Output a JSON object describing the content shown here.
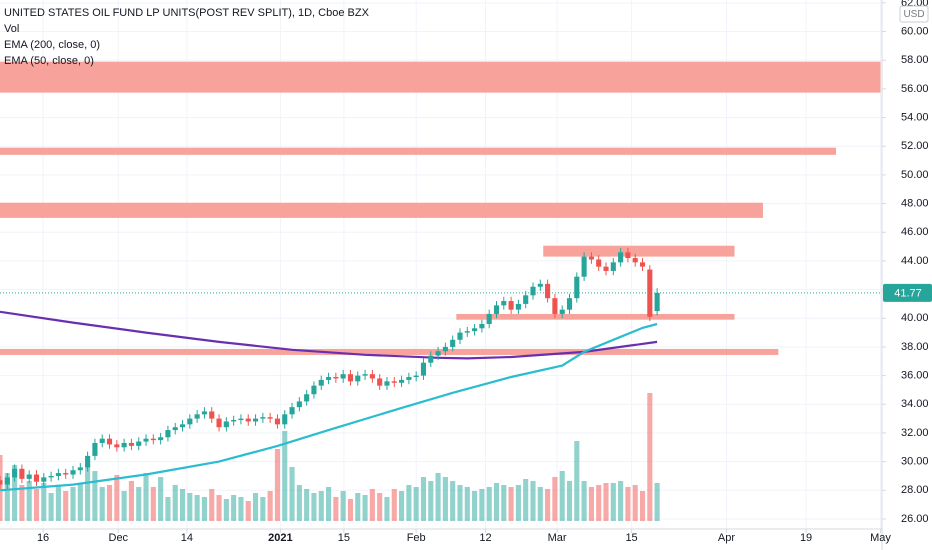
{
  "chart_data": {
    "type": "candlestick",
    "title": "UNITED STATES OIL FUND LP UNITS(POST REV SPLIT), 1D, Cboe BZX",
    "currency": "USD",
    "open": [
      28.7,
      28.4,
      28.9,
      29.5,
      28.8,
      29.1,
      28.6,
      28.9,
      29.0,
      29.2,
      29.1,
      29.4,
      29.6,
      30.4,
      31.3,
      31.6,
      31.2,
      31.0,
      31.3,
      31.1,
      31.4,
      31.6,
      31.5,
      31.7,
      32.2,
      32.4,
      32.6,
      33.0,
      33.3,
      33.5,
      33.0,
      32.4,
      32.8,
      32.9,
      33.0,
      32.8,
      33.0,
      33.1,
      33.0,
      32.6,
      33.3,
      33.8,
      34.2,
      34.7,
      35.3,
      35.7,
      35.9,
      35.8,
      36.1,
      35.6,
      36.0,
      36.1,
      35.8,
      35.3,
      35.6,
      35.5,
      35.7,
      35.9,
      36.0,
      36.9,
      37.4,
      37.7,
      38.0,
      38.5,
      39.0,
      39.1,
      39.3,
      39.6,
      40.3,
      40.9,
      41.2,
      40.6,
      41.0,
      41.6,
      42.2,
      42.4,
      41.4,
      40.3,
      40.6,
      41.4,
      42.9,
      44.3,
      44.1,
      43.6,
      43.3,
      43.9,
      44.6,
      44.2,
      43.9,
      43.4,
      40.5
    ],
    "high": [
      29.0,
      29.2,
      29.8,
      29.8,
      29.4,
      29.4,
      29.2,
      29.3,
      29.5,
      29.5,
      29.7,
      29.9,
      30.7,
      31.6,
      31.9,
      31.9,
      31.5,
      31.6,
      31.6,
      31.7,
      31.9,
      31.9,
      32.0,
      32.5,
      32.7,
      32.9,
      33.3,
      33.6,
      33.8,
      33.8,
      33.3,
      33.1,
      33.2,
      33.3,
      33.3,
      33.3,
      33.4,
      33.4,
      33.3,
      33.6,
      34.1,
      34.5,
      35.0,
      35.6,
      36.0,
      36.2,
      36.2,
      36.4,
      36.4,
      36.3,
      36.4,
      36.4,
      36.1,
      35.9,
      35.9,
      36.0,
      36.2,
      36.3,
      37.2,
      37.7,
      38.0,
      38.3,
      38.8,
      39.3,
      39.4,
      39.6,
      39.9,
      40.6,
      41.2,
      41.5,
      41.5,
      41.3,
      41.9,
      42.5,
      42.7,
      42.7,
      41.7,
      40.9,
      41.7,
      43.2,
      44.6,
      44.6,
      44.4,
      43.9,
      44.2,
      44.9,
      44.9,
      44.5,
      44.2,
      43.7,
      42.1
    ],
    "low": [
      28.1,
      28.1,
      28.6,
      28.5,
      28.5,
      28.3,
      28.3,
      28.6,
      28.7,
      28.8,
      28.8,
      29.1,
      29.3,
      30.1,
      31.0,
      30.9,
      30.7,
      30.7,
      30.8,
      30.8,
      31.1,
      31.2,
      31.2,
      31.4,
      31.9,
      32.1,
      32.3,
      32.7,
      33.0,
      32.7,
      32.1,
      32.1,
      32.5,
      32.6,
      32.5,
      32.5,
      32.7,
      32.7,
      32.3,
      32.3,
      33.0,
      33.5,
      33.9,
      34.4,
      35.0,
      35.4,
      35.5,
      35.5,
      35.3,
      35.3,
      35.7,
      35.5,
      35.0,
      35.0,
      35.2,
      35.2,
      35.4,
      35.6,
      35.7,
      36.6,
      37.1,
      37.4,
      37.7,
      38.2,
      38.7,
      38.8,
      39.0,
      39.3,
      40.0,
      40.6,
      40.3,
      40.3,
      40.7,
      41.3,
      41.9,
      41.1,
      40.0,
      40.0,
      40.3,
      41.1,
      42.6,
      43.8,
      43.3,
      43.0,
      43.0,
      43.6,
      43.9,
      43.6,
      43.3,
      39.8,
      40.2
    ],
    "close": [
      28.4,
      28.9,
      29.5,
      28.8,
      29.1,
      28.6,
      28.9,
      29.0,
      29.2,
      29.1,
      29.4,
      29.6,
      30.4,
      31.3,
      31.6,
      31.2,
      31.0,
      31.3,
      31.1,
      31.4,
      31.6,
      31.5,
      31.7,
      32.2,
      32.4,
      32.6,
      33.0,
      33.3,
      33.5,
      33.0,
      32.4,
      32.8,
      32.9,
      33.0,
      32.8,
      33.0,
      33.1,
      33.0,
      32.6,
      33.3,
      33.8,
      34.2,
      34.7,
      35.3,
      35.7,
      35.9,
      35.8,
      36.1,
      35.6,
      36.0,
      36.1,
      35.8,
      35.3,
      35.6,
      35.5,
      35.7,
      35.9,
      36.0,
      36.9,
      37.4,
      37.7,
      38.0,
      38.5,
      39.0,
      39.1,
      39.3,
      39.6,
      40.3,
      40.9,
      41.2,
      40.6,
      41.0,
      41.6,
      42.2,
      42.4,
      41.4,
      40.3,
      40.6,
      41.4,
      42.9,
      44.3,
      44.1,
      43.6,
      43.3,
      43.9,
      44.6,
      44.2,
      43.9,
      43.6,
      40.1,
      41.77
    ],
    "volume_label": "Vol",
    "volume": [
      33,
      24,
      28,
      18,
      20,
      16,
      19,
      14,
      18,
      15,
      17,
      19,
      28,
      25,
      17,
      18,
      23,
      15,
      20,
      17,
      24,
      17,
      22,
      12,
      18,
      16,
      14,
      13,
      12,
      16,
      13,
      11,
      13,
      12,
      10,
      14,
      12,
      15,
      36,
      45,
      27,
      18,
      16,
      14,
      15,
      17,
      12,
      15,
      11,
      14,
      13,
      16,
      14,
      12,
      16,
      15,
      18,
      17,
      22,
      20,
      24,
      22,
      20,
      18,
      17,
      15,
      16,
      17,
      19,
      18,
      17,
      18,
      21,
      20,
      17,
      16,
      22,
      25,
      20,
      40,
      20,
      17,
      18,
      19,
      19,
      20,
      17,
      18,
      15,
      64,
      19
    ],
    "up_color": "#26a69a",
    "down_color": "#ef5350",
    "series": [
      {
        "name": "EMA (200, close, 0)",
        "color": "#6a2fb0",
        "x": [
          0,
          10,
          20,
          30,
          40,
          50,
          60,
          64,
          70,
          80,
          90
        ],
        "values": [
          40.45,
          39.7,
          39.0,
          38.35,
          37.8,
          37.45,
          37.24,
          37.2,
          37.3,
          37.65,
          38.35
        ]
      },
      {
        "name": "EMA (50, close, 0)",
        "color": "#2bbcd0",
        "x": [
          0,
          10,
          20,
          30,
          38,
          45,
          55,
          62,
          70,
          77,
          80,
          84,
          88,
          90
        ],
        "values": [
          28.0,
          28.4,
          29.1,
          30.0,
          31.1,
          32.2,
          33.75,
          34.8,
          35.9,
          36.7,
          37.65,
          38.5,
          39.33,
          39.6
        ]
      }
    ],
    "zones": [
      {
        "from_x": 0,
        "to_x": 120.6,
        "low": 55.74,
        "high": 57.9
      },
      {
        "from_x": 0,
        "to_x": 114.5,
        "low": 51.4,
        "high": 51.9
      },
      {
        "from_x": 0,
        "to_x": 104.5,
        "low": 47.0,
        "high": 48.06
      },
      {
        "from_x": 74.4,
        "to_x": 100.6,
        "low": 44.3,
        "high": 45.06
      },
      {
        "from_x": 62.5,
        "to_x": 100.6,
        "low": 39.9,
        "high": 40.3
      },
      {
        "from_x": 0,
        "to_x": 106.6,
        "low": 37.44,
        "high": 37.86
      }
    ],
    "zone_color": "#f7a39c",
    "xlim": [
      0,
      120.8
    ],
    "ylim": [
      25.3,
      62.2
    ],
    "xticks": [
      {
        "value": 5.9,
        "label": "16"
      },
      {
        "value": 16.2,
        "label": "Dec"
      },
      {
        "value": 25.6,
        "label": "14"
      },
      {
        "value": 38.4,
        "label": "2021"
      },
      {
        "value": 47.1,
        "label": "15"
      },
      {
        "value": 57,
        "label": "Feb"
      },
      {
        "value": 66.5,
        "label": "12"
      },
      {
        "value": 76.3,
        "label": "Mar"
      },
      {
        "value": 86.5,
        "label": "15"
      },
      {
        "value": 99.5,
        "label": "Apr"
      },
      {
        "value": 110.4,
        "label": "19"
      },
      {
        "value": 120.6,
        "label": "May"
      }
    ],
    "yticks": [
      {
        "value": 26,
        "label": "26.00"
      },
      {
        "value": 28,
        "label": "28.00"
      },
      {
        "value": 30,
        "label": "30.00"
      },
      {
        "value": 32,
        "label": "32.00"
      },
      {
        "value": 34,
        "label": "34.00"
      },
      {
        "value": 36,
        "label": "36.00"
      },
      {
        "value": 38,
        "label": "38.00"
      },
      {
        "value": 40,
        "label": "40.00"
      },
      {
        "value": 42,
        "label": "42.00"
      },
      {
        "value": 44,
        "label": "44.00"
      },
      {
        "value": 46,
        "label": "46.00"
      },
      {
        "value": 48,
        "label": "48.00"
      },
      {
        "value": 50,
        "label": "50.00"
      },
      {
        "value": 52,
        "label": "52.00"
      },
      {
        "value": 54,
        "label": "54.00"
      },
      {
        "value": 56,
        "label": "56.00"
      },
      {
        "value": 58,
        "label": "58.00"
      },
      {
        "value": 60,
        "label": "60.00"
      },
      {
        "value": 62,
        "label": "62.00"
      }
    ],
    "grid": true,
    "last_price_line": true
  }
}
